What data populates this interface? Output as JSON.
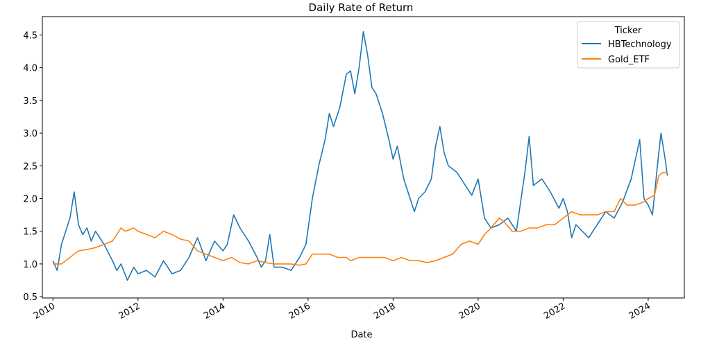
{
  "chart_data": {
    "type": "line",
    "title": "Daily Rate of Return",
    "xlabel": "Date",
    "ylabel": "",
    "xlim": [
      2009.75,
      2024.85
    ],
    "ylim": [
      0.48,
      4.78
    ],
    "x_ticks": [
      2010,
      2012,
      2014,
      2016,
      2018,
      2020,
      2022,
      2024
    ],
    "x_tick_labels": [
      "2010",
      "2012",
      "2014",
      "2016",
      "2018",
      "2020",
      "2022",
      "2024"
    ],
    "y_ticks": [
      0.5,
      1.0,
      1.5,
      2.0,
      2.5,
      3.0,
      3.5,
      4.0,
      4.5
    ],
    "y_tick_labels": [
      "0.5",
      "1.0",
      "1.5",
      "2.0",
      "2.5",
      "3.0",
      "3.5",
      "4.0",
      "4.5"
    ],
    "grid": false,
    "legend": {
      "title": "Ticker",
      "position": "top-right"
    },
    "series": [
      {
        "name": "HBTechnology",
        "color": "#1f77b4",
        "x": [
          2010.0,
          2010.1,
          2010.2,
          2010.3,
          2010.4,
          2010.5,
          2010.6,
          2010.7,
          2010.8,
          2010.9,
          2011.0,
          2011.2,
          2011.4,
          2011.5,
          2011.6,
          2011.75,
          2011.9,
          2012.0,
          2012.2,
          2012.4,
          2012.6,
          2012.8,
          2013.0,
          2013.2,
          2013.4,
          2013.6,
          2013.8,
          2014.0,
          2014.1,
          2014.25,
          2014.4,
          2014.6,
          2014.8,
          2014.9,
          2015.0,
          2015.1,
          2015.2,
          2015.4,
          2015.6,
          2015.8,
          2015.95,
          2016.1,
          2016.25,
          2016.4,
          2016.5,
          2016.6,
          2016.75,
          2016.9,
          2017.0,
          2017.1,
          2017.2,
          2017.3,
          2017.4,
          2017.5,
          2017.6,
          2017.75,
          2017.9,
          2018.0,
          2018.1,
          2018.25,
          2018.4,
          2018.5,
          2018.6,
          2018.75,
          2018.9,
          2019.0,
          2019.1,
          2019.2,
          2019.3,
          2019.5,
          2019.7,
          2019.85,
          2020.0,
          2020.15,
          2020.3,
          2020.5,
          2020.7,
          2020.9,
          2021.1,
          2021.2,
          2021.3,
          2021.5,
          2021.7,
          2021.9,
          2022.0,
          2022.1,
          2022.2,
          2022.3,
          2022.45,
          2022.6,
          2022.8,
          2023.0,
          2023.2,
          2023.4,
          2023.6,
          2023.8,
          2023.9,
          2024.0,
          2024.1,
          2024.2,
          2024.3,
          2024.4,
          2024.45
        ],
        "values": [
          1.05,
          0.9,
          1.3,
          1.5,
          1.7,
          2.1,
          1.6,
          1.45,
          1.55,
          1.35,
          1.5,
          1.3,
          1.05,
          0.9,
          1.0,
          0.75,
          0.95,
          0.85,
          0.9,
          0.8,
          1.05,
          0.85,
          0.9,
          1.1,
          1.4,
          1.05,
          1.35,
          1.2,
          1.3,
          1.75,
          1.55,
          1.35,
          1.1,
          0.95,
          1.05,
          1.45,
          0.95,
          0.95,
          0.9,
          1.1,
          1.3,
          2.0,
          2.5,
          2.9,
          3.3,
          3.1,
          3.4,
          3.9,
          3.95,
          3.6,
          4.0,
          4.55,
          4.2,
          3.7,
          3.6,
          3.3,
          2.9,
          2.6,
          2.8,
          2.3,
          2.0,
          1.8,
          2.0,
          2.1,
          2.3,
          2.8,
          3.1,
          2.7,
          2.5,
          2.4,
          2.2,
          2.05,
          2.3,
          1.7,
          1.55,
          1.6,
          1.7,
          1.5,
          2.4,
          2.95,
          2.2,
          2.3,
          2.1,
          1.85,
          2.0,
          1.8,
          1.4,
          1.6,
          1.5,
          1.4,
          1.6,
          1.8,
          1.7,
          1.95,
          2.3,
          2.9,
          2.0,
          1.9,
          1.75,
          2.4,
          3.0,
          2.6,
          2.35
        ]
      },
      {
        "name": "Gold_ETF",
        "color": "#ff7f0e",
        "x": [
          2010.0,
          2010.2,
          2010.4,
          2010.6,
          2010.8,
          2011.0,
          2011.2,
          2011.4,
          2011.6,
          2011.7,
          2011.9,
          2012.0,
          2012.2,
          2012.4,
          2012.6,
          2012.8,
          2013.0,
          2013.2,
          2013.4,
          2013.6,
          2013.8,
          2014.0,
          2014.2,
          2014.4,
          2014.6,
          2014.8,
          2015.0,
          2015.2,
          2015.4,
          2015.6,
          2015.8,
          2015.95,
          2016.1,
          2016.3,
          2016.5,
          2016.7,
          2016.9,
          2017.0,
          2017.2,
          2017.4,
          2017.6,
          2017.8,
          2018.0,
          2018.2,
          2018.4,
          2018.6,
          2018.8,
          2019.0,
          2019.2,
          2019.4,
          2019.6,
          2019.8,
          2020.0,
          2020.15,
          2020.3,
          2020.5,
          2020.6,
          2020.8,
          2021.0,
          2021.2,
          2021.4,
          2021.6,
          2021.8,
          2022.0,
          2022.2,
          2022.4,
          2022.6,
          2022.8,
          2023.0,
          2023.2,
          2023.35,
          2023.5,
          2023.7,
          2023.9,
          2024.0,
          2024.15,
          2024.25,
          2024.35,
          2024.45
        ],
        "values": [
          1.0,
          1.0,
          1.1,
          1.2,
          1.22,
          1.25,
          1.3,
          1.35,
          1.55,
          1.5,
          1.55,
          1.5,
          1.45,
          1.4,
          1.5,
          1.45,
          1.38,
          1.35,
          1.2,
          1.15,
          1.1,
          1.05,
          1.1,
          1.02,
          1.0,
          1.05,
          1.02,
          1.0,
          1.0,
          1.0,
          0.98,
          1.0,
          1.15,
          1.15,
          1.15,
          1.1,
          1.1,
          1.05,
          1.1,
          1.1,
          1.1,
          1.1,
          1.05,
          1.1,
          1.05,
          1.05,
          1.02,
          1.05,
          1.1,
          1.15,
          1.3,
          1.35,
          1.3,
          1.45,
          1.55,
          1.7,
          1.65,
          1.5,
          1.5,
          1.55,
          1.55,
          1.6,
          1.6,
          1.7,
          1.8,
          1.75,
          1.75,
          1.75,
          1.8,
          1.8,
          2.0,
          1.9,
          1.9,
          1.95,
          2.0,
          2.05,
          2.35,
          2.4,
          2.4
        ]
      }
    ]
  }
}
